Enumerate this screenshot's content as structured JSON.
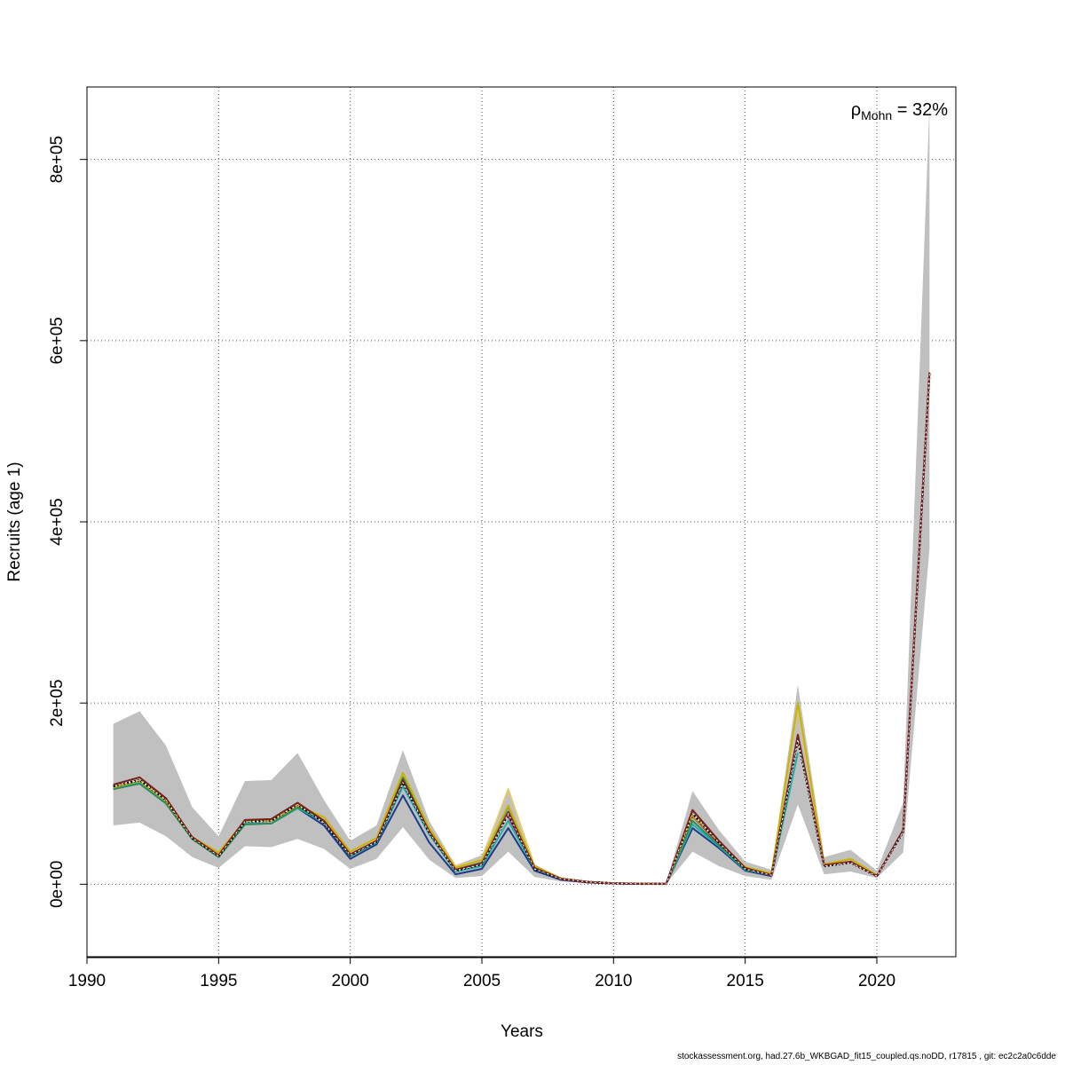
{
  "chart_data": {
    "type": "line",
    "xlabel": "Years",
    "ylabel": "Recruits (age 1)",
    "xlim": [
      1990,
      2023
    ],
    "ylim": [
      -80000,
      880000
    ],
    "x_ticks": [
      {
        "value": 1990,
        "label": "1990"
      },
      {
        "value": 1995,
        "label": "1995"
      },
      {
        "value": 2000,
        "label": "2000"
      },
      {
        "value": 2005,
        "label": "2005"
      },
      {
        "value": 2010,
        "label": "2010"
      },
      {
        "value": 2015,
        "label": "2015"
      },
      {
        "value": 2020,
        "label": "2020"
      }
    ],
    "y_ticks": [
      {
        "value": 0,
        "label": "0e+00"
      },
      {
        "value": 200000,
        "label": "2e+05"
      },
      {
        "value": 400000,
        "label": "4e+05"
      },
      {
        "value": 600000,
        "label": "6e+05"
      },
      {
        "value": 800000,
        "label": "8e+05"
      }
    ],
    "grid": true,
    "annotation": {
      "prefix": "ρ",
      "subscript": "Mohn",
      "suffix": " = 32%"
    },
    "confidence_band": {
      "x": [
        1991,
        1992,
        1993,
        1994,
        1995,
        1996,
        1997,
        1998,
        1999,
        2000,
        2001,
        2002,
        2003,
        2004,
        2005,
        2006,
        2007,
        2008,
        2009,
        2010,
        2011,
        2012,
        2013,
        2014,
        2015,
        2016,
        2017,
        2018,
        2019,
        2020,
        2021,
        2022
      ],
      "lower": [
        65000,
        68000,
        53000,
        30000,
        18000,
        42000,
        41000,
        50000,
        39000,
        17000,
        28000,
        63000,
        27000,
        7000,
        9000,
        36000,
        8000,
        3000,
        1500,
        500,
        300,
        300,
        36000,
        20000,
        9000,
        5000,
        88000,
        11000,
        14000,
        7000,
        35000,
        370000
      ],
      "upper": [
        177000,
        191000,
        153000,
        85000,
        53000,
        114000,
        115000,
        145000,
        93000,
        48000,
        65000,
        148000,
        70000,
        21000,
        32000,
        105000,
        22000,
        7000,
        3500,
        1500,
        800,
        800,
        103000,
        60000,
        25000,
        16000,
        220000,
        30000,
        38000,
        15000,
        90000,
        860000
      ],
      "color": "#c0c0c0"
    },
    "series": [
      {
        "color": "#7a1f1f",
        "x": [
          1991,
          1992,
          1993,
          1994,
          1995,
          1996,
          1997,
          1998,
          1999,
          2000,
          2001,
          2002,
          2003,
          2004,
          2005,
          2006,
          2007,
          2008,
          2009,
          2010,
          2011,
          2012,
          2013,
          2014,
          2015,
          2016,
          2017,
          2018,
          2019,
          2020,
          2021,
          2022
        ],
        "values": [
          110000,
          118000,
          95000,
          52000,
          32000,
          71000,
          72000,
          90000,
          70000,
          33000,
          48000,
          115000,
          58000,
          16000,
          23000,
          80000,
          18000,
          6000,
          2500,
          1000,
          500,
          500,
          82000,
          48000,
          18000,
          10000,
          165000,
          21000,
          25000,
          9000,
          60000,
          565000
        ]
      },
      {
        "color": "#000000",
        "dashed": true,
        "x": [
          1991,
          1992,
          1993,
          1994,
          1995,
          1996,
          1997,
          1998,
          1999,
          2000,
          2001,
          2002,
          2003,
          2004,
          2005,
          2006,
          2007,
          2008,
          2009,
          2010,
          2011,
          2012,
          2013,
          2014,
          2015,
          2016,
          2017,
          2018,
          2019,
          2020,
          2021,
          2022
        ],
        "values": [
          108000,
          115000,
          93000,
          51000,
          31000,
          69000,
          70000,
          88000,
          68000,
          32000,
          47000,
          112000,
          57000,
          15000,
          22000,
          78000,
          17000,
          6000,
          2500,
          1000,
          500,
          500,
          78000,
          46000,
          17000,
          10000,
          160000,
          20000,
          24000,
          9000,
          58000,
          565000
        ]
      },
      {
        "color": "#c8b400",
        "x": [
          1991,
          1992,
          1993,
          1994,
          1995,
          1996,
          1997,
          1998,
          1999,
          2000,
          2001,
          2002,
          2003,
          2004,
          2005,
          2006,
          2007,
          2008,
          2009,
          2010,
          2011,
          2012,
          2013,
          2014,
          2015,
          2016,
          2017,
          2018,
          2019,
          2020
        ],
        "values": [
          107000,
          114000,
          92000,
          52000,
          35000,
          70000,
          70000,
          87000,
          74000,
          36000,
          51000,
          123000,
          62000,
          18000,
          27000,
          87000,
          20000,
          6500,
          2800,
          1100,
          600,
          500,
          76000,
          47000,
          19000,
          12000,
          200000,
          22000,
          28000,
          10000
        ]
      },
      {
        "color": "#e6c96e",
        "x": [
          1991,
          1992,
          1993,
          1994,
          1995,
          1996,
          1997,
          1998,
          1999,
          2000,
          2001,
          2002,
          2003,
          2004,
          2005,
          2006,
          2007,
          2008,
          2009,
          2010,
          2011,
          2012,
          2013,
          2014,
          2015,
          2016,
          2017,
          2018,
          2019
        ],
        "values": [
          107000,
          114000,
          92000,
          52000,
          35000,
          70000,
          70000,
          87000,
          74000,
          36000,
          51000,
          123000,
          62000,
          20000,
          27000,
          105000,
          20000,
          6500,
          2800,
          1100,
          600,
          500,
          76000,
          47000,
          19000,
          12000,
          195000,
          22000,
          28000
        ]
      },
      {
        "color": "#2e8b57",
        "x": [
          1991,
          1992,
          1993,
          1994,
          1995,
          1996,
          1997,
          1998,
          1999,
          2000,
          2001,
          2002,
          2003,
          2004,
          2005,
          2006,
          2007,
          2008,
          2009,
          2010,
          2011,
          2012,
          2013,
          2014,
          2015,
          2016,
          2017,
          2018
        ],
        "values": [
          105000,
          111000,
          89000,
          50000,
          30000,
          66000,
          67000,
          85000,
          70000,
          31000,
          48000,
          118000,
          60000,
          16000,
          24000,
          86000,
          20000,
          6500,
          2800,
          1100,
          600,
          500,
          70000,
          43000,
          17000,
          11000,
          165000,
          20000
        ]
      },
      {
        "color": "#20b2aa",
        "x": [
          1991,
          1992,
          1993,
          1994,
          1995,
          1996,
          1997,
          1998,
          1999,
          2000,
          2001,
          2002,
          2003,
          2004,
          2005,
          2006,
          2007,
          2008,
          2009,
          2010,
          2011,
          2012,
          2013,
          2014,
          2015,
          2016,
          2017
        ],
        "values": [
          105000,
          112000,
          90000,
          50000,
          30000,
          67000,
          67000,
          84000,
          69000,
          31000,
          46000,
          108000,
          55000,
          14000,
          20000,
          70000,
          17000,
          6000,
          2600,
          1000,
          500,
          500,
          66000,
          42000,
          16000,
          10000,
          145000
        ]
      },
      {
        "color": "#1e3a8a",
        "x": [
          1991,
          1992,
          1993,
          1994,
          1995,
          1996,
          1997,
          1998,
          1999,
          2000,
          2001,
          2002,
          2003,
          2004,
          2005,
          2006,
          2007,
          2008,
          2009,
          2010,
          2011,
          2012,
          2013,
          2014,
          2015,
          2016
        ],
        "values": [
          105000,
          112000,
          90000,
          50000,
          30000,
          67000,
          67000,
          84000,
          65000,
          28000,
          44000,
          98000,
          46000,
          11000,
          17000,
          62000,
          15000,
          5000,
          2000,
          800,
          400,
          400,
          62000,
          40000,
          15000,
          9000
        ]
      },
      {
        "color": "#b03060",
        "x": [
          2006,
          2007,
          2008,
          2009,
          2010,
          2011,
          2012,
          2013,
          2014,
          2015
        ],
        "values": [
          75000,
          16000,
          5000,
          2000,
          800,
          400,
          400,
          75000,
          45000,
          17000
        ]
      }
    ]
  },
  "footer": "stockassessment.org, had.27.6b_WKBGAD_fit15_coupled.qs.noDD, r17815 , git: ec2c2a0c6dde"
}
